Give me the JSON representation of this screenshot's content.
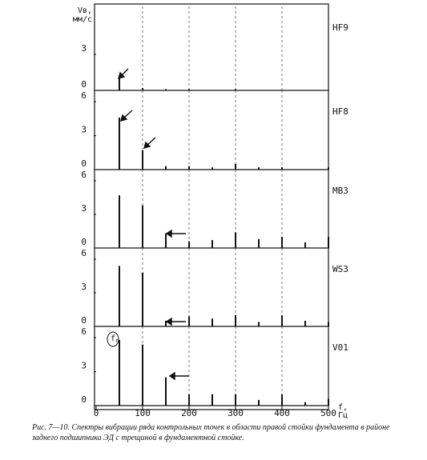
{
  "chart_data": [
    {
      "type": "stem",
      "name": "HF9",
      "ylabel_lines": [
        "Vв,",
        "мм/с"
      ],
      "x": [
        50,
        100,
        150,
        200,
        300
      ],
      "values": [
        1.2,
        0.2,
        0.1,
        0.1,
        0.1
      ],
      "color": "#111111",
      "xlim": [
        0,
        500
      ],
      "xticks": [
        100,
        200,
        300,
        400
      ],
      "ylim": [
        0,
        7
      ],
      "yticks": [
        0,
        3
      ]
    },
    {
      "type": "stem",
      "name": "HF8",
      "x": [
        50,
        100,
        150,
        200,
        250,
        300,
        350,
        400,
        500
      ],
      "values": [
        4.6,
        1.7,
        0.3,
        0.3,
        0.2,
        0.5,
        0.2,
        0.2,
        0.2
      ],
      "color": "#111111",
      "xlim": [
        0,
        500
      ],
      "xticks": [
        100,
        200,
        300,
        400
      ],
      "ylim": [
        0,
        7
      ],
      "yticks": [
        0,
        3,
        6
      ]
    },
    {
      "type": "stem",
      "name": "MB3",
      "x": [
        50,
        100,
        150,
        200,
        250,
        300,
        350,
        400,
        450,
        500
      ],
      "values": [
        4.7,
        3.8,
        1.3,
        0.6,
        0.7,
        1.4,
        0.8,
        1.0,
        0.5,
        1.0
      ],
      "color": "#111111",
      "xlim": [
        0,
        500
      ],
      "xticks": [
        100,
        200,
        300,
        400
      ],
      "ylim": [
        0,
        7
      ],
      "yticks": [
        0,
        3,
        6
      ]
    },
    {
      "type": "stem",
      "name": "WS3",
      "x": [
        50,
        100,
        150,
        200,
        250,
        300,
        350,
        400,
        450,
        500
      ],
      "values": [
        5.4,
        4.8,
        0.5,
        0.9,
        0.7,
        1.0,
        0.4,
        1.0,
        0.5,
        0.4
      ],
      "color": "#111111",
      "xlim": [
        0,
        500
      ],
      "xticks": [
        100,
        200,
        300,
        400
      ],
      "ylim": [
        0,
        7
      ],
      "yticks": [
        0,
        3,
        6
      ]
    },
    {
      "type": "stem",
      "name": "V01",
      "annotation_symbol": "f",
      "annotation_subscript": "r",
      "xlabel_lines": [
        "f,",
        "Гц"
      ],
      "x": [
        50,
        100,
        150,
        200,
        250,
        300,
        350,
        400,
        450,
        500
      ],
      "values": [
        5.8,
        5.4,
        2.5,
        1.0,
        1.0,
        1.0,
        0.5,
        1.0,
        0.3,
        0.6
      ],
      "color": "#111111",
      "xlim": [
        0,
        500
      ],
      "xticks": [
        0,
        100,
        200,
        300,
        400,
        500
      ],
      "ylim": [
        0,
        7
      ],
      "yticks": [
        0,
        3,
        6
      ]
    }
  ],
  "caption": "Рис. 7—10. Спектры вибрации ряда контрольных точек в области правой стойки фундамента в районе заднего подшипника ЭД с трещиной в фундаментной стойке."
}
